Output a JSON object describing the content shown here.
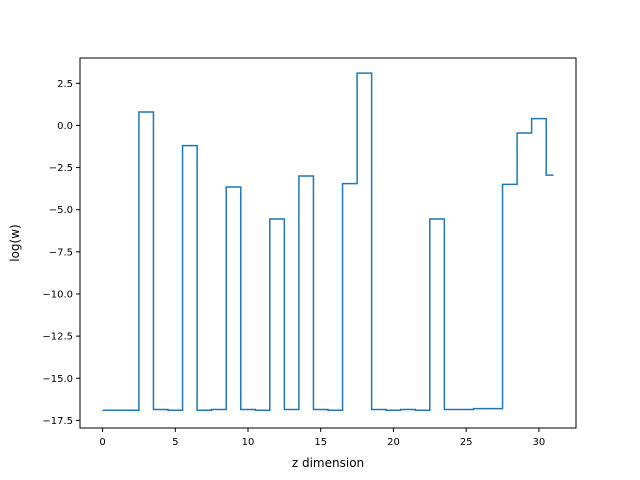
{
  "chart_data": {
    "type": "line",
    "drawstyle": "steps-mid",
    "title": "",
    "xlabel": "z dimension",
    "ylabel": "log(w)",
    "xlim": [
      -1.55,
      32.55
    ],
    "ylim": [
      -17.95,
      4.0
    ],
    "xticks": [
      0,
      5,
      10,
      15,
      20,
      25,
      30
    ],
    "xtick_labels": [
      "0",
      "5",
      "10",
      "15",
      "20",
      "25",
      "30"
    ],
    "yticks": [
      2.5,
      0.0,
      -2.5,
      -5.0,
      -7.5,
      -10.0,
      -12.5,
      -15.0,
      -17.5
    ],
    "ytick_labels": [
      "2.5",
      "0.0",
      "−2.5",
      "−5.0",
      "−7.5",
      "−10.0",
      "−12.5",
      "−15.0",
      "−17.5"
    ],
    "grid": false,
    "line_color": "#1f77b4",
    "x": [
      0,
      1,
      2,
      3,
      4,
      5,
      6,
      7,
      8,
      9,
      10,
      11,
      12,
      13,
      14,
      15,
      16,
      17,
      18,
      19,
      20,
      21,
      22,
      23,
      24,
      25,
      26,
      27,
      28,
      29,
      30,
      31
    ],
    "y": [
      -16.9,
      -16.9,
      -16.9,
      0.8,
      -16.85,
      -16.9,
      -1.2,
      -16.9,
      -16.85,
      -3.65,
      -16.85,
      -16.9,
      -5.55,
      -16.85,
      -3.0,
      -16.85,
      -16.9,
      -3.45,
      3.1,
      -16.85,
      -16.9,
      -16.85,
      -16.9,
      -5.55,
      -16.85,
      -16.85,
      -16.8,
      -16.8,
      -3.5,
      -0.45,
      0.4,
      -2.95
    ]
  }
}
